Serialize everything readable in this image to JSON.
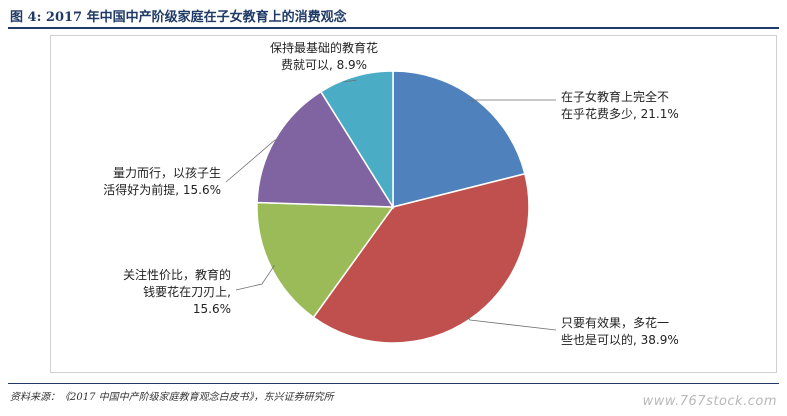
{
  "figure": {
    "title": "图 4: 2017 年中国中产阶级家庭在子女教育上的消费观念",
    "source": "资料来源：《2017 中国中产阶级家庭教育观念白皮书》，东兴证券研究所",
    "watermark": "www.767stock.com"
  },
  "chart_data": {
    "type": "pie",
    "title": "",
    "unit": "%",
    "slices": [
      {
        "lines": [
          "在子女教育上完全不",
          "在乎花费多少, 21.1%"
        ],
        "value": 21.1,
        "color": "#4f81bd"
      },
      {
        "lines": [
          "只要有效果，多花一",
          "些也是可以的, 38.9%"
        ],
        "value": 38.9,
        "color": "#c0504d"
      },
      {
        "lines": [
          "关注性价比，教育的",
          "钱要花在刀刃上,",
          "15.6%"
        ],
        "value": 15.6,
        "color": "#9bbb59"
      },
      {
        "lines": [
          "量力而行，以孩子生",
          "活得好为前提, 15.6%"
        ],
        "value": 15.6,
        "color": "#8064a2"
      },
      {
        "lines": [
          "保持最基础的教育花",
          "费就可以, 8.9%"
        ],
        "value": 8.9,
        "color": "#4bacc6"
      }
    ]
  }
}
